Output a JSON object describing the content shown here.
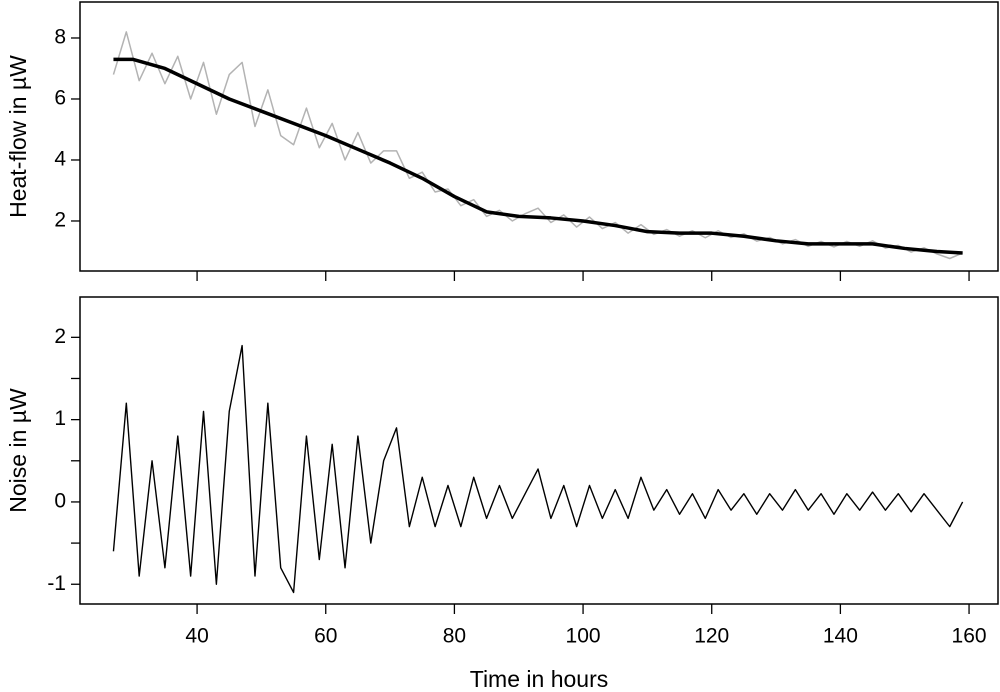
{
  "chart_data": [
    {
      "type": "line",
      "ylabel": "Heat-flow in µW",
      "xlim": [
        21.8,
        164.5
      ],
      "ylim": [
        0.36,
        9.18
      ],
      "xticks": [
        40,
        60,
        80,
        100,
        120,
        140,
        160
      ],
      "yticks": [
        2,
        4,
        6,
        8
      ],
      "show_xtick_labels": false,
      "series": [
        {
          "color": "#b3b3b3",
          "width": 1.5,
          "x": [
            27,
            29,
            31,
            33,
            35,
            37,
            39,
            41,
            43,
            45,
            47,
            49,
            51,
            53,
            55,
            57,
            59,
            61,
            63,
            65,
            67,
            69,
            71,
            73,
            75,
            77,
            79,
            81,
            83,
            85,
            87,
            89,
            91,
            93,
            95,
            97,
            99,
            101,
            103,
            105,
            107,
            109,
            111,
            113,
            115,
            117,
            119,
            121,
            123,
            125,
            127,
            129,
            131,
            133,
            135,
            137,
            139,
            141,
            143,
            145,
            147,
            149,
            151,
            153,
            155,
            157,
            159
          ],
          "values": [
            6.8,
            8.2,
            6.6,
            7.5,
            6.5,
            7.4,
            6.0,
            7.2,
            5.5,
            6.8,
            7.2,
            5.1,
            6.3,
            4.8,
            4.5,
            5.7,
            4.4,
            5.2,
            4.0,
            4.9,
            3.9,
            4.3,
            4.3,
            3.4,
            3.6,
            2.95,
            3.05,
            2.5,
            2.7,
            2.15,
            2.35,
            2.0,
            2.24,
            2.42,
            1.95,
            2.2,
            1.8,
            2.13,
            1.75,
            1.95,
            1.6,
            1.88,
            1.56,
            1.72,
            1.5,
            1.68,
            1.45,
            1.68,
            1.46,
            1.58,
            1.34,
            1.46,
            1.25,
            1.39,
            1.17,
            1.33,
            1.15,
            1.33,
            1.17,
            1.35,
            1.11,
            1.2,
            0.98,
            1.12,
            0.92,
            0.77,
            0.95
          ]
        },
        {
          "color": "#000000",
          "width": 3.5,
          "x": [
            27,
            30,
            35,
            40,
            45,
            50,
            55,
            60,
            65,
            70,
            75,
            80,
            85,
            90,
            95,
            100,
            105,
            110,
            115,
            120,
            125,
            130,
            135,
            140,
            145,
            150,
            155,
            159
          ],
          "values": [
            7.3,
            7.3,
            7.0,
            6.5,
            6.0,
            5.6,
            5.2,
            4.8,
            4.35,
            3.9,
            3.4,
            2.8,
            2.3,
            2.15,
            2.1,
            2.0,
            1.85,
            1.65,
            1.6,
            1.6,
            1.5,
            1.35,
            1.25,
            1.25,
            1.25,
            1.1,
            1.0,
            0.95
          ]
        }
      ]
    },
    {
      "type": "line",
      "ylabel": "Noise in µW",
      "xlabel": "Time in hours",
      "xlim": [
        21.8,
        164.5
      ],
      "ylim": [
        -1.24,
        2.49
      ],
      "xticks": [
        40,
        60,
        80,
        100,
        120,
        140,
        160
      ],
      "show_xtick_labels": true,
      "yticks": [
        {
          "value": -1,
          "label": "-1"
        },
        0,
        1,
        2
      ],
      "yminor_ticks": [
        -0.5,
        0.5,
        1.5
      ],
      "series": [
        {
          "color": "#000000",
          "width": 1.4,
          "x": [
            27,
            29,
            31,
            33,
            35,
            37,
            39,
            41,
            43,
            45,
            47,
            49,
            51,
            53,
            55,
            57,
            59,
            61,
            63,
            65,
            67,
            69,
            71,
            73,
            75,
            77,
            79,
            81,
            83,
            85,
            87,
            89,
            91,
            93,
            95,
            97,
            99,
            101,
            103,
            105,
            107,
            109,
            111,
            113,
            115,
            117,
            119,
            121,
            123,
            125,
            127,
            129,
            131,
            133,
            135,
            137,
            139,
            141,
            143,
            145,
            147,
            149,
            151,
            153,
            155,
            157,
            159
          ],
          "values": [
            -0.6,
            1.2,
            -0.9,
            0.5,
            -0.8,
            0.8,
            -0.9,
            1.1,
            -1.0,
            1.1,
            1.9,
            -0.9,
            1.2,
            -0.8,
            -1.1,
            0.8,
            -0.7,
            0.7,
            -0.8,
            0.8,
            -0.5,
            0.5,
            0.9,
            -0.3,
            0.3,
            -0.3,
            0.2,
            -0.3,
            0.3,
            -0.2,
            0.2,
            -0.2,
            0.1,
            0.4,
            -0.2,
            0.2,
            -0.3,
            0.2,
            -0.2,
            0.15,
            -0.2,
            0.3,
            -0.1,
            0.15,
            -0.15,
            0.1,
            -0.2,
            0.15,
            -0.1,
            0.1,
            -0.15,
            0.1,
            -0.1,
            0.15,
            -0.1,
            0.1,
            -0.15,
            0.1,
            -0.1,
            0.12,
            -0.1,
            0.1,
            -0.12,
            0.1,
            -0.1,
            -0.3,
            0.0
          ]
        }
      ]
    }
  ]
}
